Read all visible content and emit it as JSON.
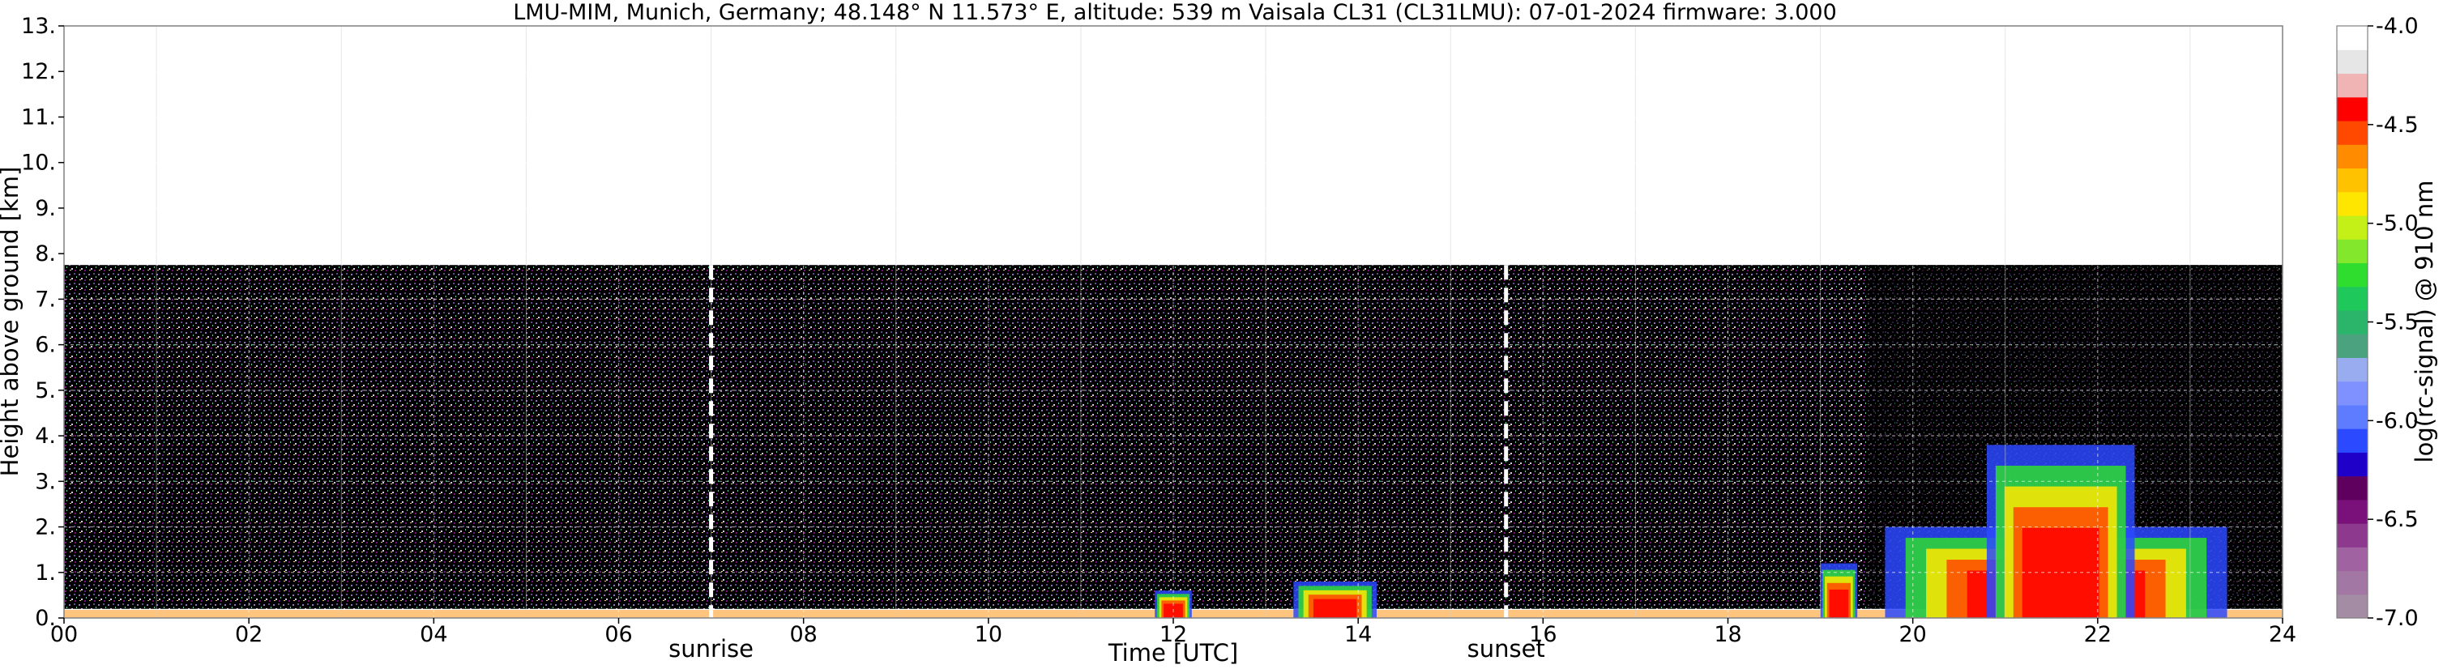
{
  "chart_data": {
    "type": "heatmap",
    "title": "LMU-MIM, Munich, Germany; 48.148° N 11.573° E, altitude: 539 m    Vaisala CL31 (CL31LMU): 07-01-2024    firmware: 3.000",
    "xlabel": "Time [UTC]",
    "ylabel": "Height above ground [km]",
    "colorbar_label": "log(rc-signal) @ 910 nm",
    "xlim": [
      0,
      24
    ],
    "ylim": [
      0,
      13
    ],
    "xticks": [
      0,
      2,
      4,
      6,
      8,
      10,
      12,
      14,
      16,
      18,
      20,
      22,
      24
    ],
    "xtick_labels": [
      "00",
      "02",
      "04",
      "06",
      "08",
      "10",
      "12",
      "14",
      "16",
      "18",
      "20",
      "22",
      "24"
    ],
    "yticks": [
      0,
      1,
      2,
      3,
      4,
      5,
      6,
      7,
      8,
      9,
      10,
      11,
      12,
      13
    ],
    "ytick_labels": [
      "0.",
      "1.",
      "2.",
      "3.",
      "4.",
      "5.",
      "6.",
      "7.",
      "8.",
      "9.",
      "10.",
      "11.",
      "12.",
      "13."
    ],
    "colorbar_range": [
      -7.0,
      -4.0
    ],
    "colorbar_ticks": [
      -7.0,
      -6.5,
      -6.0,
      -5.5,
      -5.0,
      -4.5,
      -4.0
    ],
    "colorbar_tick_labels": [
      "-7.0",
      "-6.5",
      "-6.0",
      "-5.5",
      "-5.0",
      "-4.5",
      "-4.0"
    ],
    "colorbar_colors": [
      "#a58ca5",
      "#a377a3",
      "#a062a0",
      "#8d398d",
      "#7a107a",
      "#5f005f",
      "#1f00c8",
      "#2b49ff",
      "#5d7cff",
      "#7f91ff",
      "#99acf0",
      "#4aa27e",
      "#2bb56b",
      "#1fc85a",
      "#2fdd2f",
      "#83e72b",
      "#c4f018",
      "#ffe600",
      "#ffc200",
      "#ff8c00",
      "#ff4800",
      "#ff0000",
      "#f0b4b4",
      "#e6e6e6",
      "#ffffff"
    ],
    "max_signal_height_km": 7.75,
    "grid": true,
    "annotations": [
      {
        "label": "sunrise",
        "x": 7.0
      },
      {
        "label": "sunset",
        "x": 15.6
      }
    ],
    "features": [
      {
        "x_range": [
          0,
          24
        ],
        "height_km": 0.2,
        "desc": "surface layer"
      },
      {
        "x_range": [
          11.8,
          12.2
        ],
        "height_km": 0.6
      },
      {
        "x_range": [
          13.3,
          14.2
        ],
        "height_km": 0.8
      },
      {
        "x_range": [
          19.0,
          19.4
        ],
        "height_km": 1.2
      },
      {
        "x_range": [
          19.7,
          23.4
        ],
        "height_km": 2.0
      },
      {
        "x_range": [
          20.8,
          22.4
        ],
        "height_km": 3.8
      }
    ]
  }
}
